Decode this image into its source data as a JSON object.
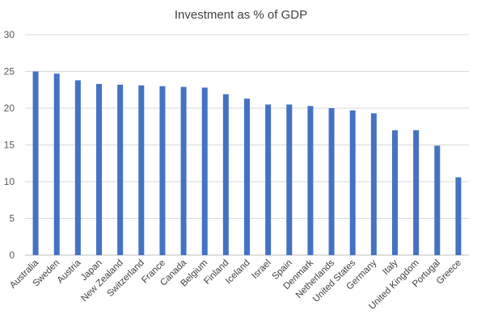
{
  "chart_data": {
    "type": "bar",
    "title": "Investment as % of GDP",
    "xlabel": "",
    "ylabel": "",
    "ylim": [
      0,
      30
    ],
    "yticks": [
      0,
      5,
      10,
      15,
      20,
      25,
      30
    ],
    "grid": true,
    "legend": "none",
    "bar_color": "#4472c4",
    "categories": [
      "Australia",
      "Sweden",
      "Austria",
      "Japan",
      "New Zealand",
      "Switzerland",
      "France",
      "Canada",
      "Belgium",
      "Finland",
      "Iceland",
      "Israel",
      "Spain",
      "Denmark",
      "Netherlands",
      "United States",
      "Germany",
      "Italy",
      "United Kingdom",
      "Portugal",
      "Greece"
    ],
    "values": [
      25.0,
      24.7,
      23.8,
      23.3,
      23.2,
      23.1,
      23.0,
      22.9,
      22.8,
      21.9,
      21.3,
      20.5,
      20.5,
      20.3,
      20.0,
      19.7,
      19.3,
      17.0,
      17.0,
      14.9,
      10.6
    ]
  }
}
